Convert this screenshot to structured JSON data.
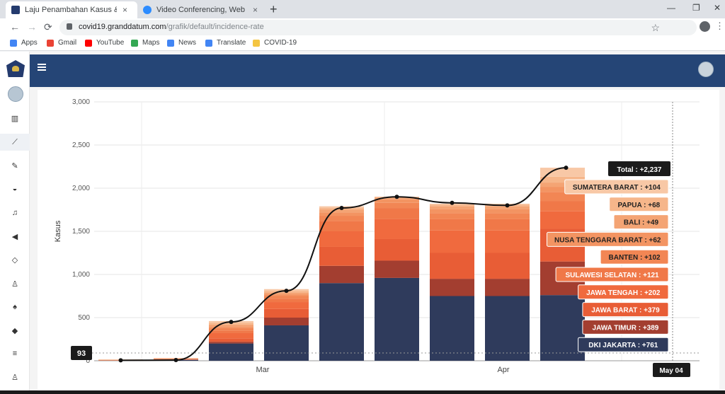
{
  "browser": {
    "tabs": [
      {
        "title": "Laju Penambahan Kasus & Insidensi",
        "close": "×",
        "active": true
      },
      {
        "title": "Video Conferencing, Web Conferencing",
        "close": "×",
        "active": false
      }
    ],
    "new_tab": "+",
    "window_controls": {
      "minimize": "—",
      "restore": "❐",
      "close": "✕"
    },
    "nav": {
      "back": "←",
      "forward": "→",
      "reload": "⟳"
    },
    "url_host": "covid19.granddatum.com",
    "url_path": "/grafik/default/incidence-rate",
    "bookmarks": [
      {
        "label": "Apps",
        "icon": "apps-grid-icon",
        "color": "#4285f4"
      },
      {
        "label": "Gmail",
        "icon": "google-g-icon",
        "color": "#ea4335"
      },
      {
        "label": "YouTube",
        "icon": "youtube-icon",
        "color": "#ff0000"
      },
      {
        "label": "Maps",
        "icon": "maps-icon",
        "color": "#34a853"
      },
      {
        "label": "News",
        "icon": "news-icon",
        "color": "#4285f4"
      },
      {
        "label": "Translate",
        "icon": "translate-icon",
        "color": "#4285f4"
      },
      {
        "label": "COVID-19",
        "icon": "folder-icon",
        "color": "#f4c542"
      }
    ]
  },
  "sidebar": {
    "icons": [
      "map-icon",
      "chart-line-icon",
      "pencil-icon",
      "gauge-icon",
      "bell-icon",
      "megaphone-icon",
      "diamond-icon",
      "user-icon",
      "android-icon",
      "dropbox-icon",
      "database-icon",
      "user-outline-icon"
    ],
    "icon_glyphs": [
      "▥",
      "⟋",
      "✎",
      "◒",
      "♫",
      "◀",
      "◇",
      "♙",
      "♠",
      "◆",
      "≡",
      "♙"
    ],
    "active_index": 1
  },
  "colors": {
    "header": "#254576",
    "navy": "#2f3b5c",
    "darkred": "#a33e30",
    "line": "#111111"
  },
  "chart_data": {
    "type": "bar",
    "ylabel": "Kasus",
    "ylim": [
      0,
      3000
    ],
    "yticks": [
      "0",
      "500",
      "1,000",
      "1,500",
      "2,000",
      "2,500",
      "3,000"
    ],
    "x_labels": [
      "Mar",
      "Apr",
      "May 04"
    ],
    "cursor_value": "93",
    "bars": [
      {
        "segments": [
          1,
          1,
          1,
          1,
          2,
          2,
          2,
          2,
          2,
          2
        ]
      },
      {
        "segments": [
          10,
          4,
          2,
          3,
          4,
          2,
          2,
          2,
          2,
          2
        ]
      },
      {
        "segments": [
          200,
          20,
          40,
          60,
          30,
          30,
          20,
          20,
          20,
          20
        ]
      },
      {
        "segments": [
          410,
          90,
          100,
          80,
          40,
          30,
          20,
          20,
          20,
          20
        ]
      },
      {
        "segments": [
          900,
          200,
          220,
          180,
          120,
          60,
          40,
          30,
          20,
          20
        ]
      },
      {
        "segments": [
          960,
          200,
          250,
          230,
          130,
          60,
          40,
          20,
          10,
          0
        ]
      },
      {
        "segments": [
          750,
          200,
          300,
          260,
          130,
          70,
          50,
          30,
          20,
          10
        ]
      },
      {
        "segments": [
          750,
          200,
          300,
          260,
          130,
          70,
          50,
          30,
          20,
          10
        ]
      },
      {
        "segments": [
          761,
          389,
          379,
          202,
          121,
          102,
          62,
          49,
          68,
          104
        ]
      }
    ],
    "total_line": [
      5,
      8,
      450,
      810,
      1770,
      1900,
      1830,
      1800,
      2237
    ],
    "line_x_offsets": [
      0,
      1,
      2,
      3,
      4,
      5,
      6,
      7,
      8
    ],
    "segment_colors": [
      "#2f3b5c",
      "#a33e30",
      "#e85d36",
      "#f06a3e",
      "#f07848",
      "#f28654",
      "#f39462",
      "#f4a474",
      "#f6b68a",
      "#f8c8a6"
    ],
    "tooltip": {
      "total": "Total : +2,237",
      "items": [
        {
          "label": "SUMATERA BARAT : +104",
          "color": "#f8c8a6",
          "text_color": "#222"
        },
        {
          "label": "PAPUA : +68",
          "color": "#f6b68a",
          "text_color": "#222"
        },
        {
          "label": "BALI : +49",
          "color": "#f4a474",
          "text_color": "#222"
        },
        {
          "label": "NUSA TENGGARA BARAT : +62",
          "color": "#f39462",
          "text_color": "#222"
        },
        {
          "label": "BANTEN : +102",
          "color": "#f28654",
          "text_color": "#222"
        },
        {
          "label": "SULAWESI SELATAN : +121",
          "color": "#f07848",
          "text_color": "#fff"
        },
        {
          "label": "JAWA TENGAH : +202",
          "color": "#f06a3e",
          "text_color": "#fff"
        },
        {
          "label": "JAWA BARAT : +379",
          "color": "#e85d36",
          "text_color": "#fff"
        },
        {
          "label": "JAWA TIMUR : +389",
          "color": "#a33e30",
          "text_color": "#fff"
        },
        {
          "label": "DKI JAKARTA : +761",
          "color": "#2f3b5c",
          "text_color": "#fff"
        }
      ]
    }
  }
}
